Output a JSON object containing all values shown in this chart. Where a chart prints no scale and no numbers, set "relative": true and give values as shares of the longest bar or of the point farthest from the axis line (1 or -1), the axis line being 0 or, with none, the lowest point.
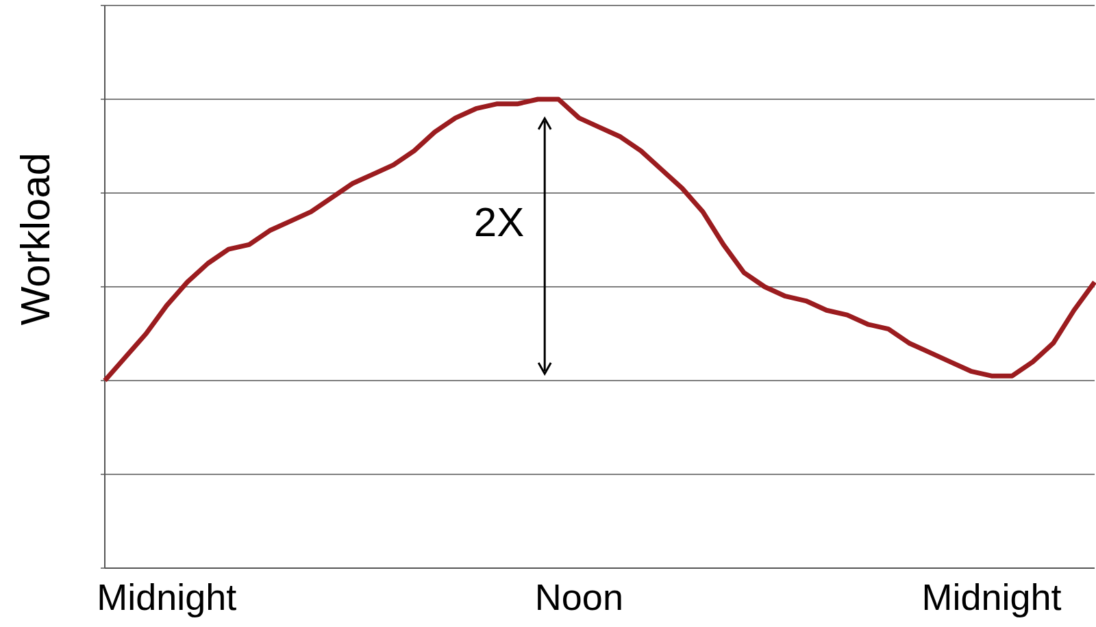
{
  "chart_data": {
    "type": "line",
    "ylabel": "Workload",
    "relative": true,
    "grid": "y",
    "marker": "none",
    "line_style": "solid",
    "categories": [
      null,
      null,
      null,
      "Midnight",
      null,
      null,
      null,
      null,
      null,
      null,
      null,
      null,
      null,
      null,
      null,
      null,
      null,
      null,
      null,
      null,
      null,
      null,
      null,
      "Noon",
      null,
      null,
      null,
      null,
      null,
      null,
      null,
      null,
      null,
      null,
      null,
      null,
      null,
      null,
      null,
      null,
      null,
      null,
      null,
      "Midnight",
      null,
      null,
      null,
      null,
      null
    ],
    "annotations": [
      "2X"
    ],
    "series": [
      {
        "color": "#9b1c1f",
        "values": [
          0.4,
          0.45,
          0.5,
          0.56,
          0.61,
          0.65,
          0.68,
          0.69,
          0.72,
          0.74,
          0.76,
          0.79,
          0.82,
          0.84,
          0.86,
          0.89,
          0.93,
          0.96,
          0.98,
          0.99,
          0.99,
          1.0,
          1.0,
          0.96,
          0.94,
          0.92,
          0.89,
          0.85,
          0.81,
          0.76,
          0.69,
          0.63,
          0.6,
          0.58,
          0.57,
          0.55,
          0.54,
          0.52,
          0.51,
          0.48,
          0.46,
          0.44,
          0.42,
          0.41,
          0.41,
          0.44,
          0.48,
          0.55,
          0.61
        ]
      }
    ]
  }
}
